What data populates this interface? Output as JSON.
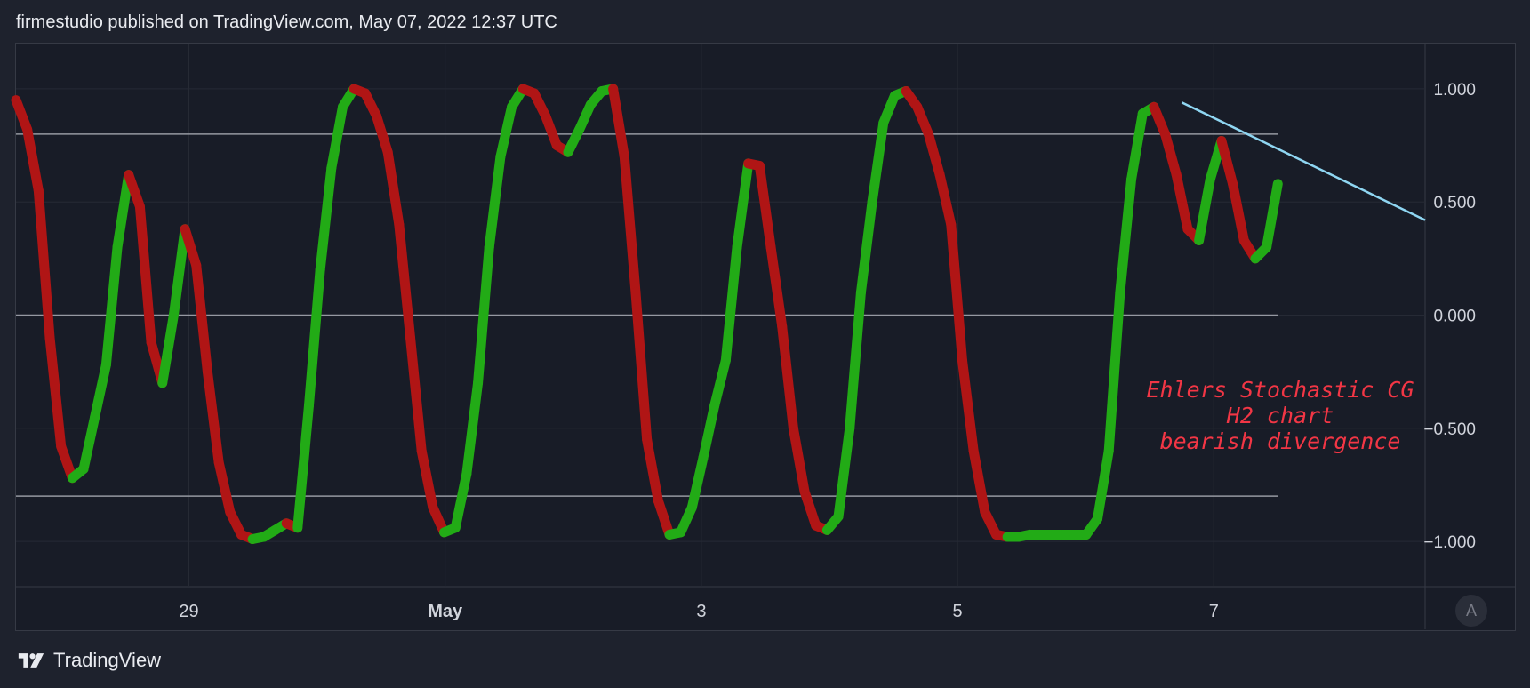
{
  "header": {
    "text": "firmestudio published on TradingView.com, May 07, 2022 12:37 UTC"
  },
  "footer": {
    "brand": "TradingView",
    "logo_icon": "tradingview-logo-icon"
  },
  "auto_button": {
    "label": "A"
  },
  "annotation": {
    "lines": [
      "Ehlers Stochastic CG",
      "H2 chart",
      "bearish divergence"
    ],
    "color": "#f23645"
  },
  "colors": {
    "rising": "#22ab16",
    "falling": "#b01515",
    "trendline": "#8fd6f2",
    "level_lines": "#9598a1",
    "grid": "#262a35",
    "axis_text": "#d1d4dc"
  },
  "chart_data": {
    "type": "line",
    "title": "",
    "ylim": [
      -1.2,
      1.2
    ],
    "y_ticks": [
      1.0,
      0.5,
      0.0,
      -0.5,
      -1.0
    ],
    "y_tick_labels": [
      "1.000",
      "0.500",
      "0.000",
      "−0.500",
      "−1.000"
    ],
    "x_ticks": [
      8,
      28,
      48,
      68,
      88
    ],
    "x_tick_labels": [
      "29",
      "May",
      "3",
      "5",
      "7"
    ],
    "x_tick_bold": [
      false,
      true,
      false,
      false,
      false
    ],
    "levels": [
      0.8,
      0.0,
      -0.8
    ],
    "x_range": [
      -5.5,
      104.5
    ],
    "x_extent": [
      -5.5,
      93
    ],
    "grid": true,
    "series": [
      {
        "values": [
          0.95,
          0.82,
          0.55,
          -0.1,
          -0.58,
          -0.72,
          -0.68,
          -0.45,
          -0.22,
          0.3,
          0.62,
          0.48,
          -0.12,
          -0.3,
          0.0,
          0.38,
          0.22,
          -0.25,
          -0.65,
          -0.87,
          -0.97,
          -0.99,
          -0.98,
          -0.95,
          -0.92,
          -0.94,
          -0.4,
          0.2,
          0.65,
          0.92,
          1.0,
          0.98,
          0.88,
          0.72,
          0.4,
          -0.1,
          -0.6,
          -0.85,
          -0.96,
          -0.94,
          -0.7,
          -0.3,
          0.3,
          0.7,
          0.92,
          1.0,
          0.98,
          0.88,
          0.75,
          0.72,
          0.82,
          0.93,
          0.99,
          1.0,
          0.7,
          0.1,
          -0.55,
          -0.82,
          -0.97,
          -0.96,
          -0.85,
          -0.63,
          -0.4,
          -0.2,
          0.3,
          0.67,
          0.66,
          0.3,
          -0.05,
          -0.5,
          -0.78,
          -0.93,
          -0.95,
          -0.89,
          -0.5,
          0.1,
          0.5,
          0.85,
          0.97,
          0.99,
          0.92,
          0.8,
          0.62,
          0.4,
          -0.2,
          -0.6,
          -0.87,
          -0.97,
          -0.98,
          -0.98,
          -0.97,
          -0.97,
          -0.97,
          -0.97,
          -0.97,
          -0.97,
          -0.9,
          -0.6,
          0.1,
          0.6,
          0.89,
          0.92,
          0.8,
          0.62,
          0.38,
          0.33,
          0.6,
          0.77,
          0.58,
          0.33,
          0.25,
          0.3,
          0.58
        ]
      }
    ],
    "trendline": {
      "from": [
        85.5,
        0.94
      ],
      "to": [
        104.5,
        0.42
      ]
    }
  }
}
